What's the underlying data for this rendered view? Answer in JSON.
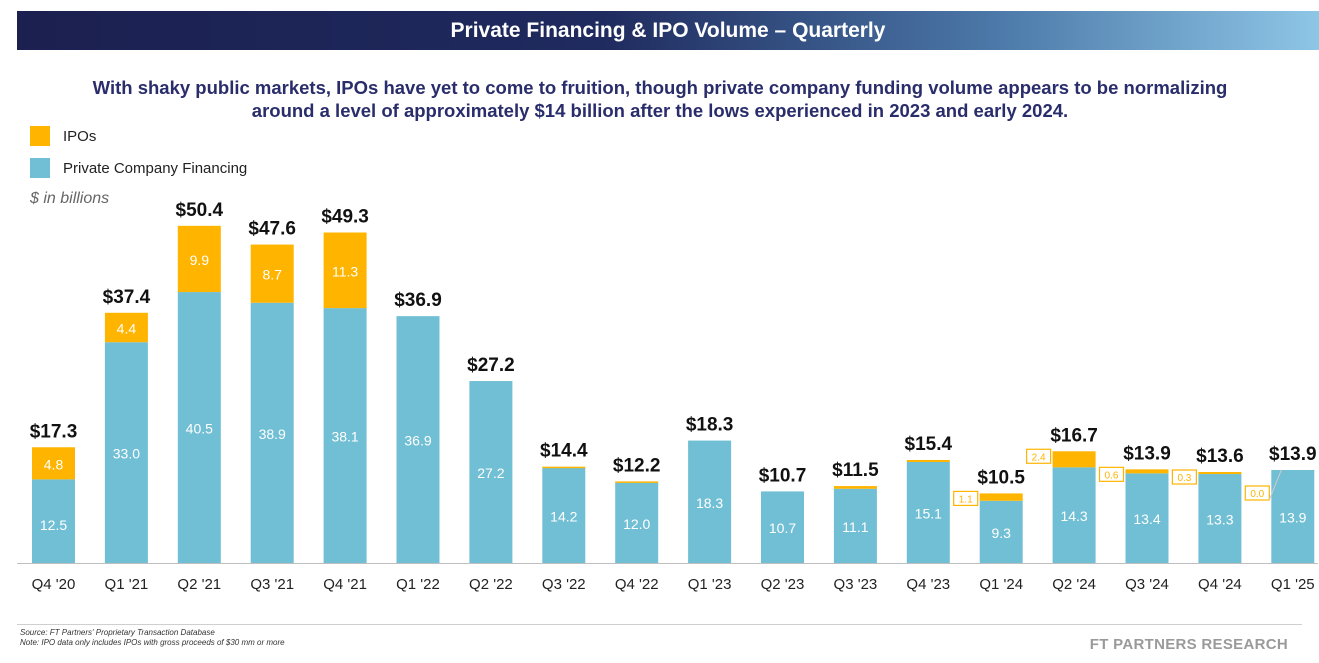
{
  "header": {
    "title": "Private Financing & IPO Volume – Quarterly"
  },
  "subtitle": "With shaky public markets, IPOs have yet to come to fruition, though private company funding volume appears to be normalizing around a level of approximately $14 billion after the lows experienced in 2023 and early 2024.",
  "legend": [
    {
      "label": "IPOs",
      "color": "#ffb400"
    },
    {
      "label": "Private Company Financing",
      "color": "#71bfd4"
    }
  ],
  "units": "$ in billions",
  "footer": {
    "source": "Source: FT Partners' Proprietary Transaction Database",
    "note": "Note: IPO data only includes IPOs with gross proceeds of $30 mm or more",
    "brand": "FT PARTNERS RESEARCH"
  },
  "chart_data": {
    "type": "bar",
    "stacked": true,
    "categories": [
      "Q4 '20",
      "Q1 '21",
      "Q2 '21",
      "Q3 '21",
      "Q4 '21",
      "Q1 '22",
      "Q2 '22",
      "Q3 '22",
      "Q4 '22",
      "Q1 '23",
      "Q2 '23",
      "Q3 '23",
      "Q4 '23",
      "Q1 '24",
      "Q2 '24",
      "Q3 '24",
      "Q4 '24",
      "Q1 '25"
    ],
    "series": [
      {
        "name": "Private Company Financing",
        "color": "#71bfd4",
        "values": [
          12.5,
          33.0,
          40.5,
          38.9,
          38.1,
          36.9,
          27.2,
          14.2,
          12.0,
          18.3,
          10.7,
          11.1,
          15.1,
          9.3,
          14.3,
          13.4,
          13.3,
          13.9
        ],
        "labels": [
          "12.5",
          "33.0",
          "40.5",
          "38.9",
          "38.1",
          "36.9",
          "27.2",
          "14.2",
          "12.0",
          "18.3",
          "10.7",
          "11.1",
          "15.1",
          "9.3",
          "14.3",
          "13.4",
          "13.3",
          "13.9"
        ]
      },
      {
        "name": "IPOs",
        "color": "#ffb400",
        "values": [
          4.8,
          4.4,
          9.9,
          8.7,
          11.3,
          0,
          0,
          0.2,
          0.2,
          0,
          0,
          0.4,
          0.3,
          1.1,
          2.4,
          0.6,
          0.3,
          0.0
        ],
        "labels": [
          "4.8",
          "4.4",
          "9.9",
          "8.7",
          "11.3",
          "",
          "",
          "",
          "",
          "",
          "",
          "",
          "",
          "1.1",
          "2.4",
          "0.6",
          "0.3",
          "0.0"
        ]
      }
    ],
    "totals": [
      "$17.3",
      "$37.4",
      "$50.4",
      "$47.6",
      "$49.3",
      "$36.9",
      "$27.2",
      "$14.4",
      "$12.2",
      "$18.3",
      "$10.7",
      "$11.5",
      "$15.4",
      "$10.5",
      "$16.7",
      "$13.9",
      "$13.6",
      "$13.9"
    ],
    "ylim": [
      0,
      55
    ],
    "xlabel": "",
    "ylabel": ""
  }
}
